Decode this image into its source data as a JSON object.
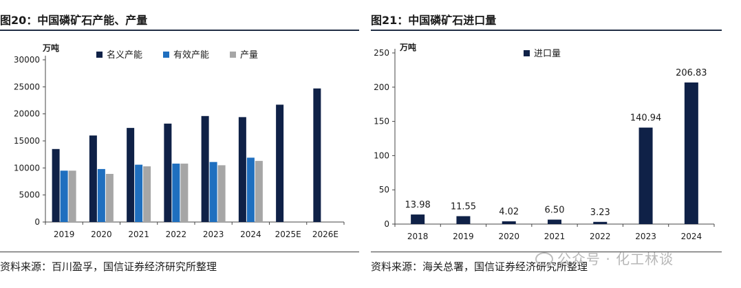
{
  "figure_left": {
    "title": "图20：中国磷矿石产能、产量",
    "source": "资料来源：百川盈孚，国信证券经济研究所整理"
  },
  "figure_right": {
    "title": "图21：中国磷矿石进口量",
    "source": "资料来源：海关总署，国信证券经济研究所整理"
  },
  "watermark": {
    "text": "公众号 · 化工林谈",
    "icon": "wechat-icon"
  },
  "colors": {
    "navy": "#0f2147",
    "blue": "#1f6fbf",
    "gray": "#a6a6a6"
  },
  "chart_data": [
    {
      "type": "bar",
      "unit_label": "万吨",
      "categories": [
        "2019",
        "2020",
        "2021",
        "2022",
        "2023",
        "2024",
        "2025E",
        "2026E"
      ],
      "ylim": [
        0,
        30000
      ],
      "yticks": [
        0,
        5000,
        10000,
        15000,
        20000,
        25000,
        30000
      ],
      "legend_position": "top",
      "grid": false,
      "series": [
        {
          "name": "名义产能",
          "color": "#0f2147",
          "values": [
            13500,
            16000,
            17400,
            18200,
            19600,
            19400,
            21700,
            24700
          ]
        },
        {
          "name": "有效产能",
          "color": "#1f6fbf",
          "values": [
            9500,
            9800,
            10600,
            10800,
            11100,
            11900,
            null,
            null
          ]
        },
        {
          "name": "产量",
          "color": "#a6a6a6",
          "values": [
            9500,
            8900,
            10300,
            10800,
            10500,
            11300,
            null,
            null
          ]
        }
      ]
    },
    {
      "type": "bar",
      "unit_label": "万吨",
      "categories": [
        "2018",
        "2019",
        "2020",
        "2021",
        "2022",
        "2023",
        "2024"
      ],
      "ylim": [
        0,
        250
      ],
      "yticks": [
        0,
        50,
        100,
        150,
        200,
        250
      ],
      "legend_position": "top",
      "grid": false,
      "series": [
        {
          "name": "进口量",
          "color": "#0f2147",
          "values": [
            13.98,
            11.55,
            4.02,
            6.5,
            3.23,
            140.94,
            206.83
          ],
          "labels": [
            "13.98",
            "11.55",
            "4.02",
            "6.50",
            "3.23",
            "140.94",
            "206.83"
          ]
        }
      ]
    }
  ]
}
